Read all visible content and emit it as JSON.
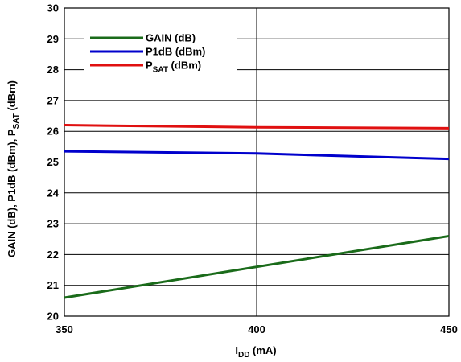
{
  "chart_data": {
    "type": "line",
    "xlabel": {
      "main": "I",
      "sub": "DD",
      "rest": " (mA)"
    },
    "ylabel": {
      "pre": "GAIN (dB), P1dB (dBm), P",
      "sub": "SAT",
      "post": " (dBm)"
    },
    "xlim": [
      350,
      450
    ],
    "ylim": [
      20,
      30
    ],
    "x_ticks": [
      "350",
      "400",
      "450"
    ],
    "y_ticks": [
      "20",
      "21",
      "22",
      "23",
      "24",
      "25",
      "26",
      "27",
      "28",
      "29",
      "30"
    ],
    "grid": true,
    "legend_position": "top-left",
    "series": [
      {
        "name": "GAIN (dB)",
        "name_main": "GAIN (dB)",
        "name_sub": "",
        "name_rest": "",
        "color": "#1a6b1a",
        "x": [
          350,
          450
        ],
        "y": [
          20.6,
          22.6
        ]
      },
      {
        "name": "P1dB (dBm)",
        "name_main": "P1dB (dBm)",
        "name_sub": "",
        "name_rest": "",
        "color": "#0000cc",
        "x": [
          350,
          400,
          450
        ],
        "y": [
          25.35,
          25.28,
          25.1
        ]
      },
      {
        "name": "PSAT (dBm)",
        "name_main": "P",
        "name_sub": "SAT",
        "name_rest": " (dBm)",
        "color": "#e01010",
        "x": [
          350,
          400,
          450
        ],
        "y": [
          26.2,
          26.13,
          26.1
        ]
      }
    ]
  }
}
